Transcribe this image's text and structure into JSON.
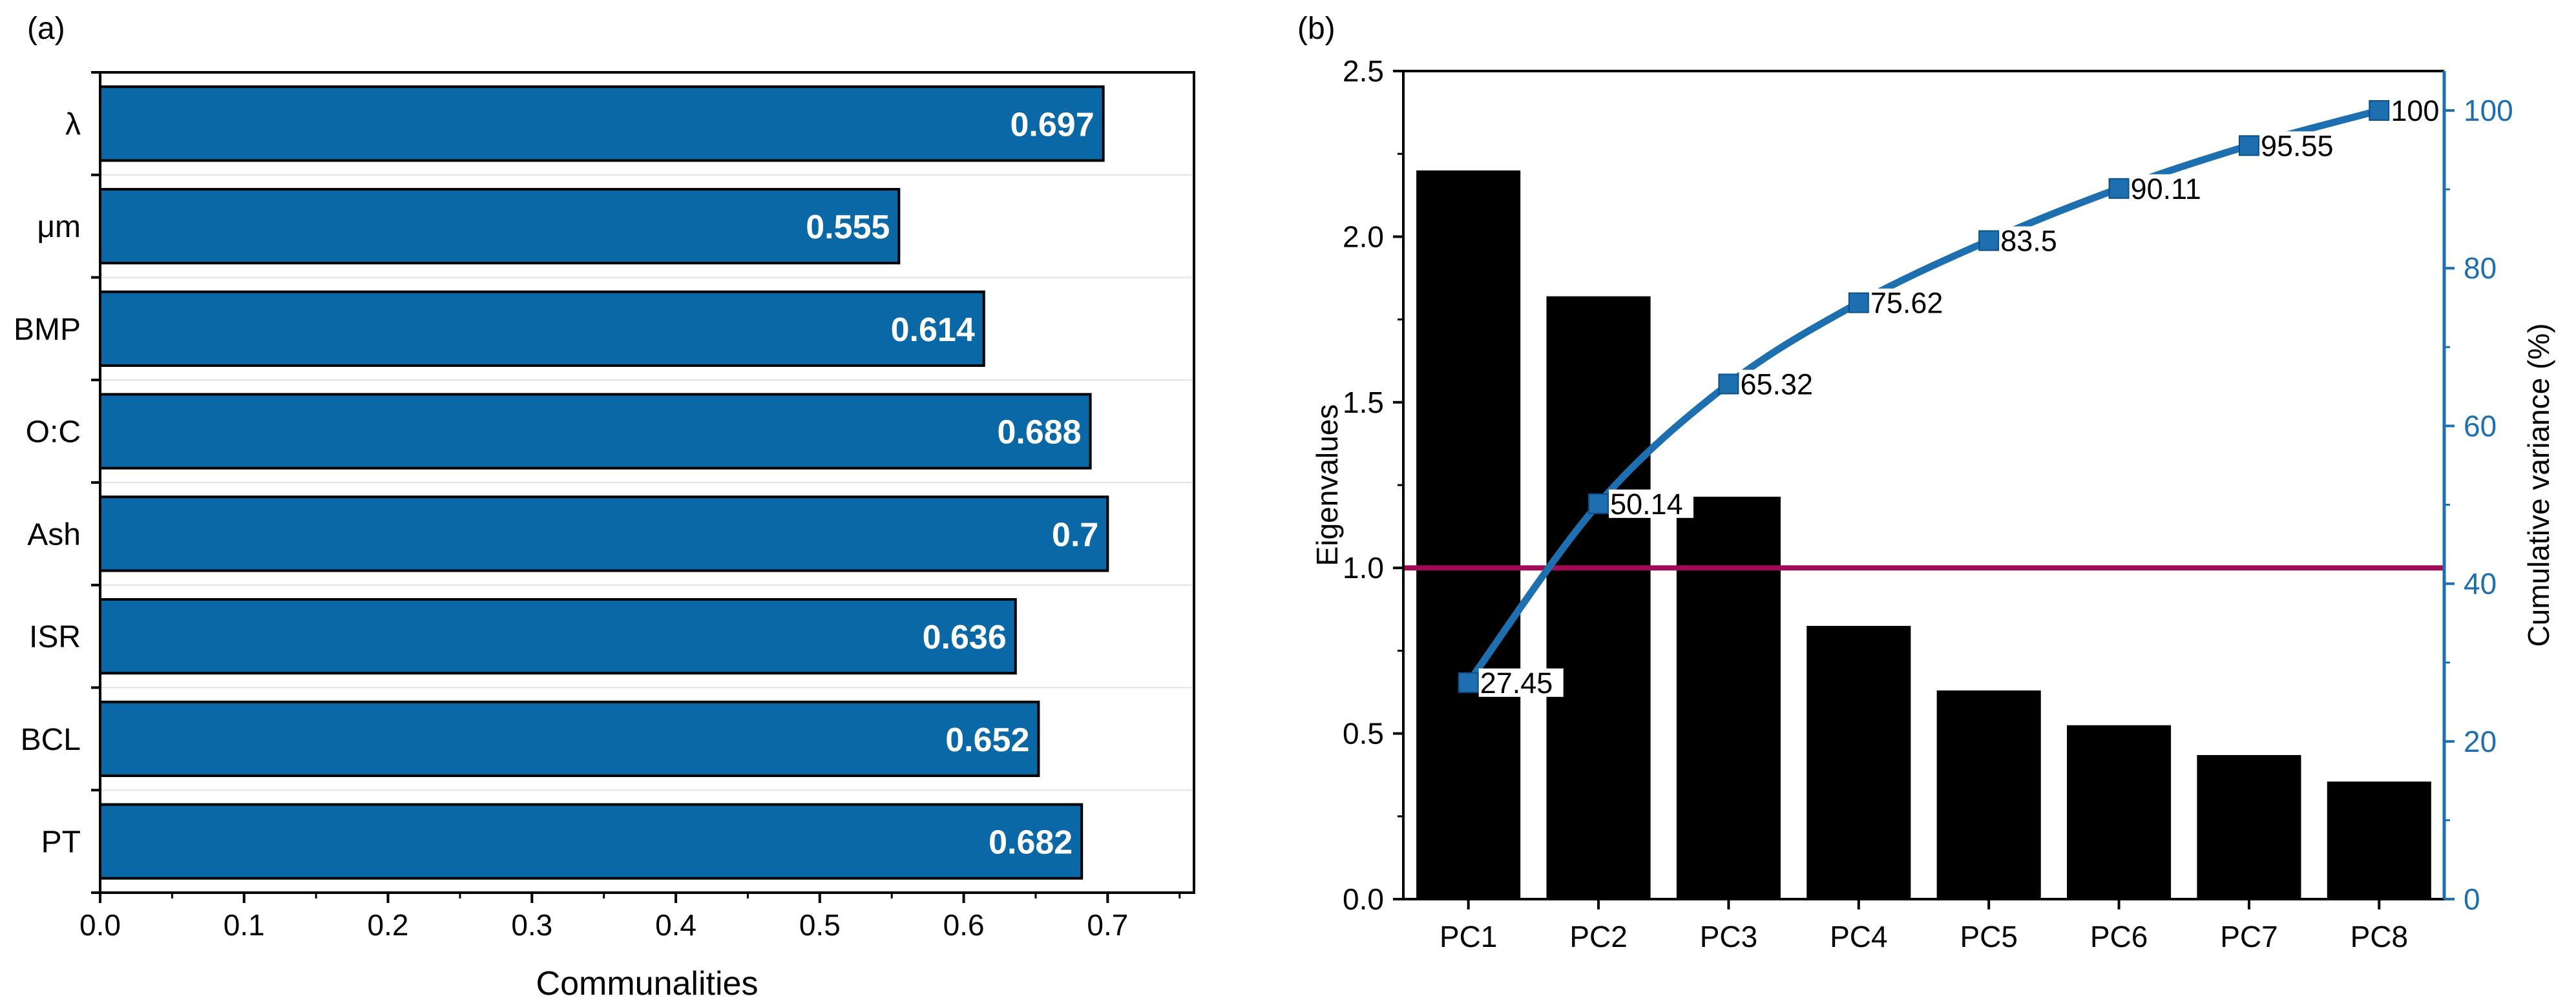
{
  "panel_a": {
    "label": "(a)"
  },
  "panel_b": {
    "label": "(b)"
  },
  "colors": {
    "bar_blue": "#0A68A7",
    "bar_black": "#000000",
    "line_blue": "#1E6FB0",
    "threshold": "#A10B55",
    "axis_blue": "#1E6FB0"
  },
  "chart_data": [
    {
      "id": "communalities",
      "type": "bar",
      "orientation": "horizontal",
      "categories": [
        "λ",
        "μm",
        "BMP",
        "O:C",
        "Ash",
        "ISR",
        "BCL",
        "PT"
      ],
      "values": [
        0.697,
        0.555,
        0.614,
        0.688,
        0.7,
        0.636,
        0.652,
        0.682
      ],
      "value_labels": [
        "0.697",
        "0.555",
        "0.614",
        "0.688",
        "0.7",
        "0.636",
        "0.652",
        "0.682"
      ],
      "xlabel": "Communalities",
      "xlim": [
        0,
        0.76
      ],
      "xticks": [
        0.0,
        0.1,
        0.2,
        0.3,
        0.4,
        0.5,
        0.6,
        0.7
      ],
      "xtick_labels": [
        "0.0",
        "0.1",
        "0.2",
        "0.3",
        "0.4",
        "0.5",
        "0.6",
        "0.7"
      ]
    },
    {
      "id": "scree",
      "type": "bar+line",
      "categories": [
        "PC1",
        "PC2",
        "PC3",
        "PC4",
        "PC5",
        "PC6",
        "PC7",
        "PC8"
      ],
      "eigenvalues": [
        2.2,
        1.82,
        1.215,
        0.825,
        0.63,
        0.525,
        0.435,
        0.355
      ],
      "cumulative_variance": [
        27.45,
        50.14,
        65.32,
        75.62,
        83.5,
        90.11,
        95.55,
        100
      ],
      "cumulative_labels": [
        "27.45",
        "50.14",
        "65.32",
        "75.62",
        "83.5",
        "90.11",
        "95.55",
        "100"
      ],
      "threshold": 1.0,
      "ylabel_left": "Eigenvalues",
      "ylabel_right": "Cumulative variance (%)",
      "ylim_left": [
        0,
        2.5
      ],
      "yticks_left": [
        "0.0",
        "0.5",
        "1.0",
        "1.5",
        "2.0",
        "2.5"
      ],
      "ylim_right": [
        0,
        105
      ],
      "yticks_right": [
        "0",
        "20",
        "40",
        "60",
        "80",
        "100"
      ]
    }
  ]
}
